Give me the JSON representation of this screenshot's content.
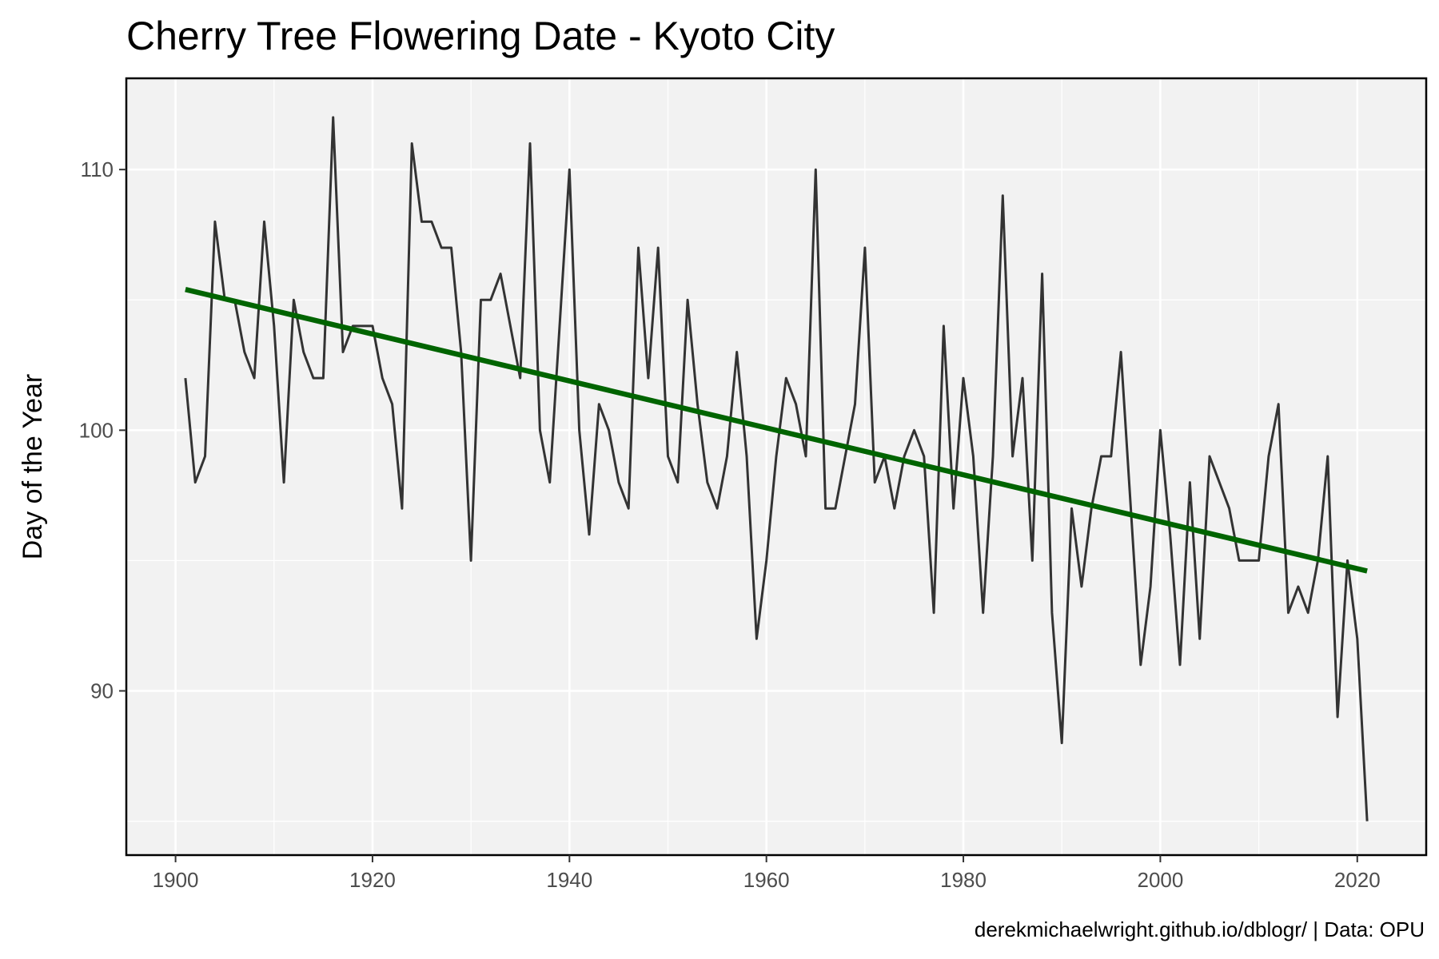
{
  "chart_data": {
    "type": "line",
    "title": "Cherry Tree Flowering Date - Kyoto City",
    "xlabel": "",
    "ylabel": "Day of the Year",
    "caption": "derekmichaelwright.github.io/dblogr/ | Data: OPU",
    "xlim": [
      1895,
      2027
    ],
    "ylim": [
      83.7,
      113.5
    ],
    "x_ticks": [
      1900,
      1920,
      1940,
      1960,
      1980,
      2000,
      2020
    ],
    "y_ticks": [
      90,
      100,
      110
    ],
    "grid": true,
    "legend": "none",
    "series": [
      {
        "color": "#333333",
        "x": [
          1901,
          1902,
          1903,
          1904,
          1905,
          1906,
          1907,
          1908,
          1909,
          1910,
          1911,
          1912,
          1913,
          1914,
          1915,
          1916,
          1917,
          1918,
          1919,
          1920,
          1921,
          1922,
          1923,
          1924,
          1925,
          1926,
          1927,
          1928,
          1929,
          1930,
          1931,
          1932,
          1933,
          1934,
          1935,
          1936,
          1937,
          1938,
          1939,
          1940,
          1941,
          1942,
          1943,
          1944,
          1945,
          1946,
          1947,
          1948,
          1949,
          1950,
          1951,
          1952,
          1953,
          1954,
          1955,
          1956,
          1957,
          1958,
          1959,
          1960,
          1961,
          1962,
          1963,
          1964,
          1965,
          1966,
          1967,
          1968,
          1969,
          1970,
          1971,
          1972,
          1973,
          1974,
          1975,
          1976,
          1977,
          1978,
          1979,
          1980,
          1981,
          1982,
          1983,
          1984,
          1985,
          1986,
          1987,
          1988,
          1989,
          1990,
          1991,
          1992,
          1993,
          1994,
          1995,
          1996,
          1997,
          1998,
          1999,
          2000,
          2001,
          2002,
          2003,
          2004,
          2005,
          2006,
          2007,
          2008,
          2009,
          2010,
          2011,
          2012,
          2013,
          2014,
          2015,
          2016,
          2017,
          2018,
          2019,
          2020,
          2021
        ],
        "y": [
          102,
          98,
          99,
          108,
          105,
          105,
          103,
          102,
          108,
          104,
          98,
          105,
          103,
          102,
          102,
          112,
          103,
          104,
          104,
          104,
          102,
          101,
          97,
          111,
          108,
          108,
          107,
          107,
          103,
          95,
          105,
          105,
          106,
          104,
          102,
          111,
          100,
          98,
          104,
          110,
          100,
          96,
          101,
          100,
          98,
          97,
          107,
          102,
          107,
          99,
          98,
          105,
          101,
          98,
          97,
          99,
          103,
          99,
          92,
          95,
          99,
          102,
          101,
          99,
          110,
          97,
          97,
          99,
          101,
          107,
          98,
          99,
          97,
          99,
          100,
          99,
          93,
          104,
          97,
          102,
          99,
          93,
          99,
          109,
          99,
          102,
          95,
          106,
          93,
          88,
          97,
          94,
          97,
          99,
          99,
          103,
          97,
          91,
          94,
          100,
          96,
          91,
          98,
          92,
          99,
          98,
          97,
          95,
          95,
          95,
          99,
          101,
          93,
          94,
          93,
          95,
          99,
          89,
          95,
          92,
          85
        ]
      },
      {
        "color": "#006400",
        "x": [
          1901,
          2021
        ],
        "y": [
          105.4,
          94.6
        ]
      }
    ]
  }
}
